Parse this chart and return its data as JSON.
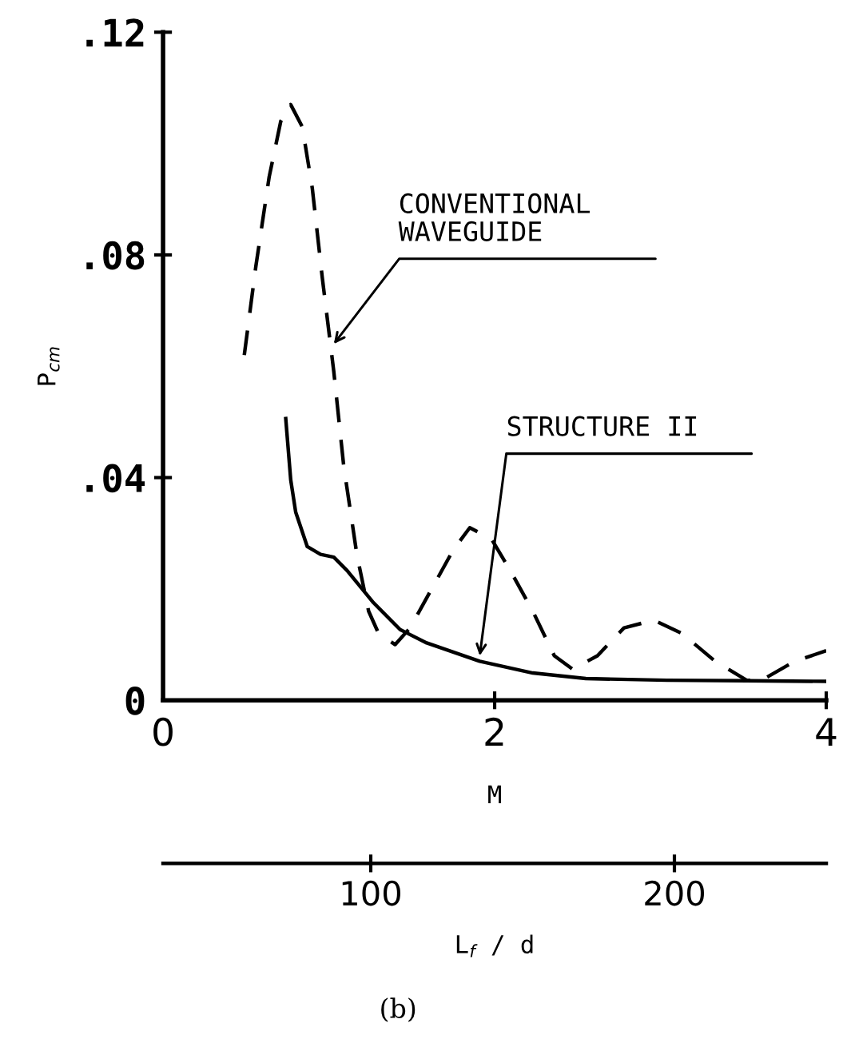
{
  "chart_data": {
    "type": "line",
    "xlabel": "M",
    "ylabel": "P$_{cm}$",
    "x2label": "L$_{f}$ / d",
    "xlim": [
      0,
      4
    ],
    "xticks": [
      0,
      2,
      4
    ],
    "ylim": [
      0,
      0.12
    ],
    "yticks": [
      {
        "value": 0,
        "label": "0"
      },
      {
        "value": 0.04,
        "label": ".04"
      },
      {
        "value": 0.08,
        "label": ".08"
      },
      {
        "value": 0.12,
        "label": ".12"
      }
    ],
    "x2lim": [
      31.6,
      250
    ],
    "x2ticks": [
      100,
      200
    ],
    "grid": false,
    "legend": false,
    "marker": "none",
    "series": [
      {
        "color": "#000000",
        "line_style": "dashed",
        "x": [
          0.49,
          0.56,
          0.64,
          0.71,
          0.77,
          0.84,
          0.9,
          0.96,
          1.03,
          1.09,
          1.17,
          1.24,
          1.3,
          1.4,
          1.49,
          1.62,
          1.75,
          1.85,
          1.98,
          2.1,
          2.23,
          2.36,
          2.47,
          2.62,
          2.78,
          2.96,
          3.13,
          3.33,
          3.52,
          3.61,
          3.81,
          4.0
        ],
        "values": [
          0.062,
          0.078,
          0.094,
          0.104,
          0.107,
          0.103,
          0.092,
          0.076,
          0.059,
          0.042,
          0.026,
          0.016,
          0.012,
          0.01,
          0.013,
          0.02,
          0.027,
          0.031,
          0.029,
          0.023,
          0.016,
          0.008,
          0.0056,
          0.008,
          0.013,
          0.0144,
          0.012,
          0.007,
          0.0036,
          0.0036,
          0.007,
          0.0089
        ]
      },
      {
        "color": "#000000",
        "line_style": "solid",
        "x": [
          0.74,
          0.77,
          0.8,
          0.87,
          0.95,
          1.03,
          1.11,
          1.27,
          1.43,
          1.59,
          1.91,
          2.23,
          2.55,
          3.04,
          3.52,
          4.0
        ],
        "values": [
          0.0506,
          0.0396,
          0.0338,
          0.0276,
          0.0262,
          0.0257,
          0.0233,
          0.0175,
          0.0127,
          0.0103,
          0.007,
          0.0049,
          0.0039,
          0.0036,
          0.0035,
          0.0034
        ]
      }
    ],
    "annotations": [
      {
        "text": "CONVENTIONAL\nWAVEGUIDE",
        "x": 1.03,
        "y": 0.064
      },
      {
        "text": "STRUCTURE II",
        "x": 1.91,
        "y": 0.008
      },
      "(b)"
    ]
  }
}
